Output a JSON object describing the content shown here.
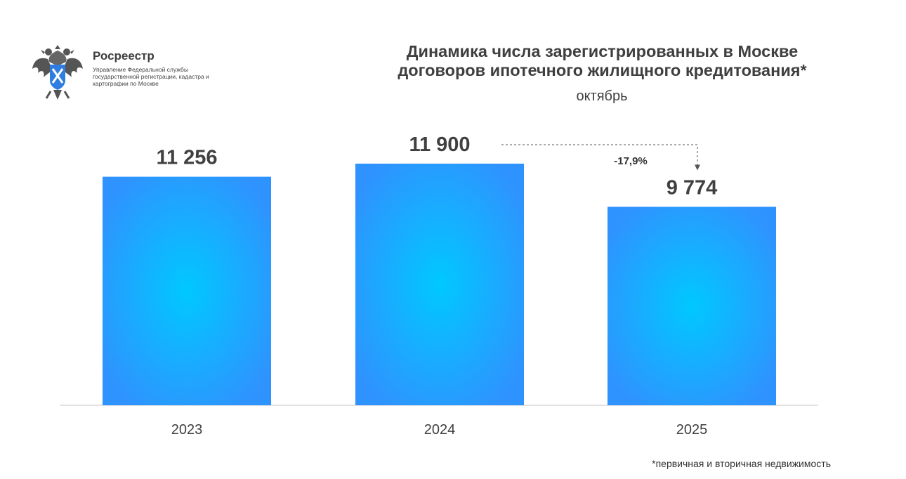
{
  "logo": {
    "name": "Росреестр",
    "subtitle": "Управление Федеральной службы государственной регистрации, кадастра и картографии по Москве"
  },
  "title_line1": "Динамика числа зарегистрированных в Москве",
  "title_line2": "договоров ипотечного жилищного кредитования*",
  "subtitle": "октябрь",
  "footnote": "*первичная и вторичная недвижимость",
  "colors": {
    "bar_center": "#00c8ff",
    "bar_edge": "#2f93ff",
    "text": "#404040",
    "axis": "#d9d9d9"
  },
  "chart_data": {
    "type": "bar",
    "categories": [
      "2023",
      "2024",
      "2025"
    ],
    "values": [
      11256,
      11900,
      9774
    ],
    "value_labels": [
      "11 256",
      "11 900",
      "9 774"
    ],
    "annotation": {
      "text": "-17,9%",
      "from": "2024",
      "to": "2025"
    },
    "ylim": [
      0,
      11900
    ],
    "grid": false,
    "legend": "none"
  }
}
